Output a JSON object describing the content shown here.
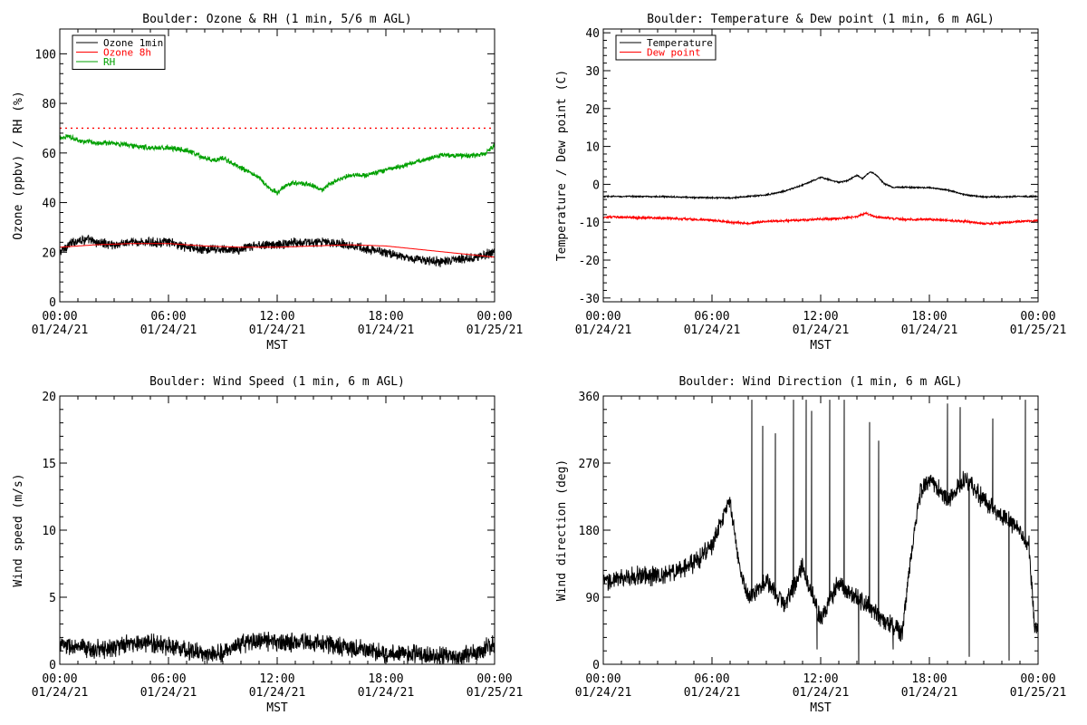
{
  "chart_data": [
    {
      "type": "line",
      "title": "Boulder: Ozone & RH (1 min, 5/6 m AGL)",
      "ylabel": "Ozone (ppbv) / RH (%)",
      "xlabel": "MST",
      "ylim": [
        0,
        110
      ],
      "yticks": [
        0,
        20,
        40,
        60,
        80,
        100
      ],
      "x_range_hours": [
        0,
        24
      ],
      "xtick_hours": [
        0,
        6,
        12,
        18,
        24
      ],
      "xtick_labels": [
        [
          "00:00",
          "01/24/21"
        ],
        [
          "06:00",
          "01/24/21"
        ],
        [
          "12:00",
          "01/24/21"
        ],
        [
          "18:00",
          "01/24/21"
        ],
        [
          "00:00",
          "01/25/21"
        ]
      ],
      "legend_position": "top-left",
      "reference_lines": [
        {
          "y": 70,
          "style": "dotted",
          "color": "#ff0000"
        }
      ],
      "series": [
        {
          "name": "Ozone 1min",
          "color": "#000000",
          "noise": 1.5,
          "x": [
            0,
            0.5,
            1,
            1.5,
            2,
            3,
            4,
            5,
            6,
            7,
            8,
            9,
            10,
            11,
            12,
            13,
            14,
            15,
            16,
            17,
            18,
            19,
            20,
            21,
            22,
            23,
            23.5,
            24
          ],
          "values": [
            20,
            23,
            25,
            25,
            24,
            23,
            24,
            24,
            24,
            22,
            21,
            21,
            21,
            23,
            23,
            24,
            24,
            24,
            23,
            21,
            20,
            18,
            17,
            16,
            17,
            18,
            19,
            20
          ]
        },
        {
          "name": "Ozone 8h",
          "color": "#ff0000",
          "noise": 0,
          "x": [
            0,
            2,
            4,
            6,
            8,
            10,
            12,
            14,
            16,
            18,
            20,
            22,
            24
          ],
          "values": [
            22,
            23,
            23.5,
            23.5,
            22.5,
            22,
            22,
            22.5,
            23,
            22.5,
            21,
            19.5,
            18
          ]
        },
        {
          "name": "RH",
          "color": "#00a000",
          "noise": 0.8,
          "x": [
            0,
            0.5,
            1,
            2,
            3,
            4,
            5,
            6,
            7,
            8,
            8.5,
            9,
            10,
            11,
            11.5,
            12,
            12.5,
            13,
            14,
            14.5,
            15,
            16,
            17,
            18,
            19,
            20,
            21,
            22,
            23,
            23.5,
            24
          ],
          "values": [
            66,
            67,
            65,
            64,
            64,
            63,
            62,
            62,
            61,
            58,
            57,
            58,
            54,
            50,
            46,
            44,
            47,
            48,
            47,
            45,
            48,
            51,
            51,
            53,
            55,
            57,
            59,
            59,
            59,
            60,
            63
          ]
        }
      ]
    },
    {
      "type": "line",
      "title": "Boulder: Temperature & Dew point (1 min, 6 m AGL)",
      "ylabel": "Temperature / Dew point (C)",
      "xlabel": "MST",
      "ylim": [
        -31,
        41
      ],
      "yticks": [
        -30,
        -20,
        -10,
        0,
        10,
        20,
        30,
        40
      ],
      "x_range_hours": [
        0,
        24
      ],
      "xtick_hours": [
        0,
        6,
        12,
        18,
        24
      ],
      "xtick_labels": [
        [
          "00:00",
          "01/24/21"
        ],
        [
          "06:00",
          "01/24/21"
        ],
        [
          "12:00",
          "01/24/21"
        ],
        [
          "18:00",
          "01/24/21"
        ],
        [
          "00:00",
          "01/25/21"
        ]
      ],
      "legend_position": "top-left",
      "series": [
        {
          "name": "Temperature",
          "color": "#000000",
          "noise": 0.15,
          "x": [
            0,
            2,
            4,
            5,
            6,
            7,
            8,
            9,
            10,
            11,
            12,
            12.5,
            13,
            13.5,
            14,
            14.3,
            14.7,
            15,
            15.5,
            16,
            17,
            18,
            19,
            20,
            21,
            22,
            23,
            24
          ],
          "values": [
            -3.2,
            -3.2,
            -3.3,
            -3.5,
            -3.5,
            -3.6,
            -3.2,
            -2.8,
            -1.8,
            -0.2,
            1.8,
            1.2,
            0.5,
            1,
            2.4,
            1.5,
            3.2,
            2.8,
            0.2,
            -0.8,
            -0.8,
            -0.9,
            -1.5,
            -2.8,
            -3.3,
            -3.3,
            -3.2,
            -3.2
          ]
        },
        {
          "name": "Dew point",
          "color": "#ff0000",
          "noise": 0.25,
          "x": [
            0,
            2,
            4,
            6,
            7,
            8,
            9,
            10,
            11,
            12,
            13,
            14,
            14.5,
            15,
            16,
            17,
            18,
            19,
            20,
            21,
            22,
            23,
            24
          ],
          "values": [
            -8.6,
            -8.8,
            -9,
            -9.5,
            -10,
            -10.3,
            -9.8,
            -9.6,
            -9.4,
            -9.2,
            -9,
            -8.5,
            -7.5,
            -8.6,
            -9,
            -9.3,
            -9.2,
            -9.6,
            -9.8,
            -10.4,
            -10.2,
            -9.8,
            -9.6
          ]
        }
      ]
    },
    {
      "type": "line",
      "title": "Boulder: Wind Speed (1 min, 6 m AGL)",
      "ylabel": "Wind speed (m/s)",
      "xlabel": "MST",
      "ylim": [
        0,
        20
      ],
      "yticks": [
        0,
        5,
        10,
        15,
        20
      ],
      "x_range_hours": [
        0,
        24
      ],
      "xtick_hours": [
        0,
        6,
        12,
        18,
        24
      ],
      "xtick_labels": [
        [
          "00:00",
          "01/24/21"
        ],
        [
          "06:00",
          "01/24/21"
        ],
        [
          "12:00",
          "01/24/21"
        ],
        [
          "18:00",
          "01/24/21"
        ],
        [
          "00:00",
          "01/25/21"
        ]
      ],
      "series": [
        {
          "name": "",
          "color": "#000000",
          "noise": 0.55,
          "clip_min": 0.05,
          "x": [
            0,
            1,
            2,
            3,
            4,
            5,
            6,
            7,
            8,
            9,
            10,
            11,
            12,
            13,
            14,
            15,
            16,
            17,
            18,
            19,
            20,
            21,
            22,
            23,
            24
          ],
          "values": [
            1.5,
            1.2,
            1.1,
            1.3,
            1.5,
            1.6,
            1.4,
            1.1,
            0.7,
            0.9,
            1.5,
            1.8,
            1.6,
            1.7,
            1.6,
            1.5,
            1.2,
            1.0,
            0.8,
            0.8,
            0.7,
            0.6,
            0.5,
            0.9,
            1.5
          ]
        }
      ]
    },
    {
      "type": "line",
      "title": "Boulder: Wind Direction (1 min, 6 m AGL)",
      "ylabel": "Wind direction (deg)",
      "xlabel": "MST",
      "ylim": [
        0,
        360
      ],
      "yticks": [
        0,
        90,
        180,
        270,
        360
      ],
      "x_range_hours": [
        0,
        24
      ],
      "xtick_hours": [
        0,
        6,
        12,
        18,
        24
      ],
      "xtick_labels": [
        [
          "00:00",
          "01/24/21"
        ],
        [
          "06:00",
          "01/24/21"
        ],
        [
          "12:00",
          "01/24/21"
        ],
        [
          "18:00",
          "01/24/21"
        ],
        [
          "00:00",
          "01/25/21"
        ]
      ],
      "series": [
        {
          "name": "",
          "color": "#000000",
          "noise": 10,
          "clip_min": 0,
          "clip_max": 360,
          "x": [
            0,
            1,
            2,
            3,
            4,
            5,
            6,
            6.5,
            7,
            7.5,
            8,
            8.5,
            9,
            10,
            11,
            12,
            13,
            14,
            15,
            16,
            16.5,
            17,
            17.5,
            18,
            19,
            20,
            21,
            22,
            23,
            23.5,
            23.8,
            24
          ],
          "values": [
            110,
            115,
            120,
            118,
            125,
            135,
            160,
            190,
            220,
            130,
            90,
            100,
            110,
            80,
            130,
            60,
            110,
            90,
            70,
            50,
            40,
            150,
            230,
            250,
            220,
            250,
            220,
            200,
            180,
            160,
            50,
            45
          ]
        }
      ],
      "spikes": [
        [
          8.2,
          355
        ],
        [
          8.8,
          320
        ],
        [
          9.5,
          310
        ],
        [
          10.5,
          355
        ],
        [
          11.2,
          355
        ],
        [
          11.5,
          340
        ],
        [
          11.8,
          20
        ],
        [
          12.5,
          355
        ],
        [
          13.3,
          355
        ],
        [
          14.1,
          0
        ],
        [
          14.7,
          325
        ],
        [
          15.2,
          300
        ],
        [
          16.0,
          20
        ],
        [
          19.0,
          350
        ],
        [
          19.7,
          345
        ],
        [
          20.2,
          10
        ],
        [
          21.5,
          330
        ],
        [
          22.4,
          5
        ],
        [
          23.3,
          355
        ]
      ]
    }
  ]
}
